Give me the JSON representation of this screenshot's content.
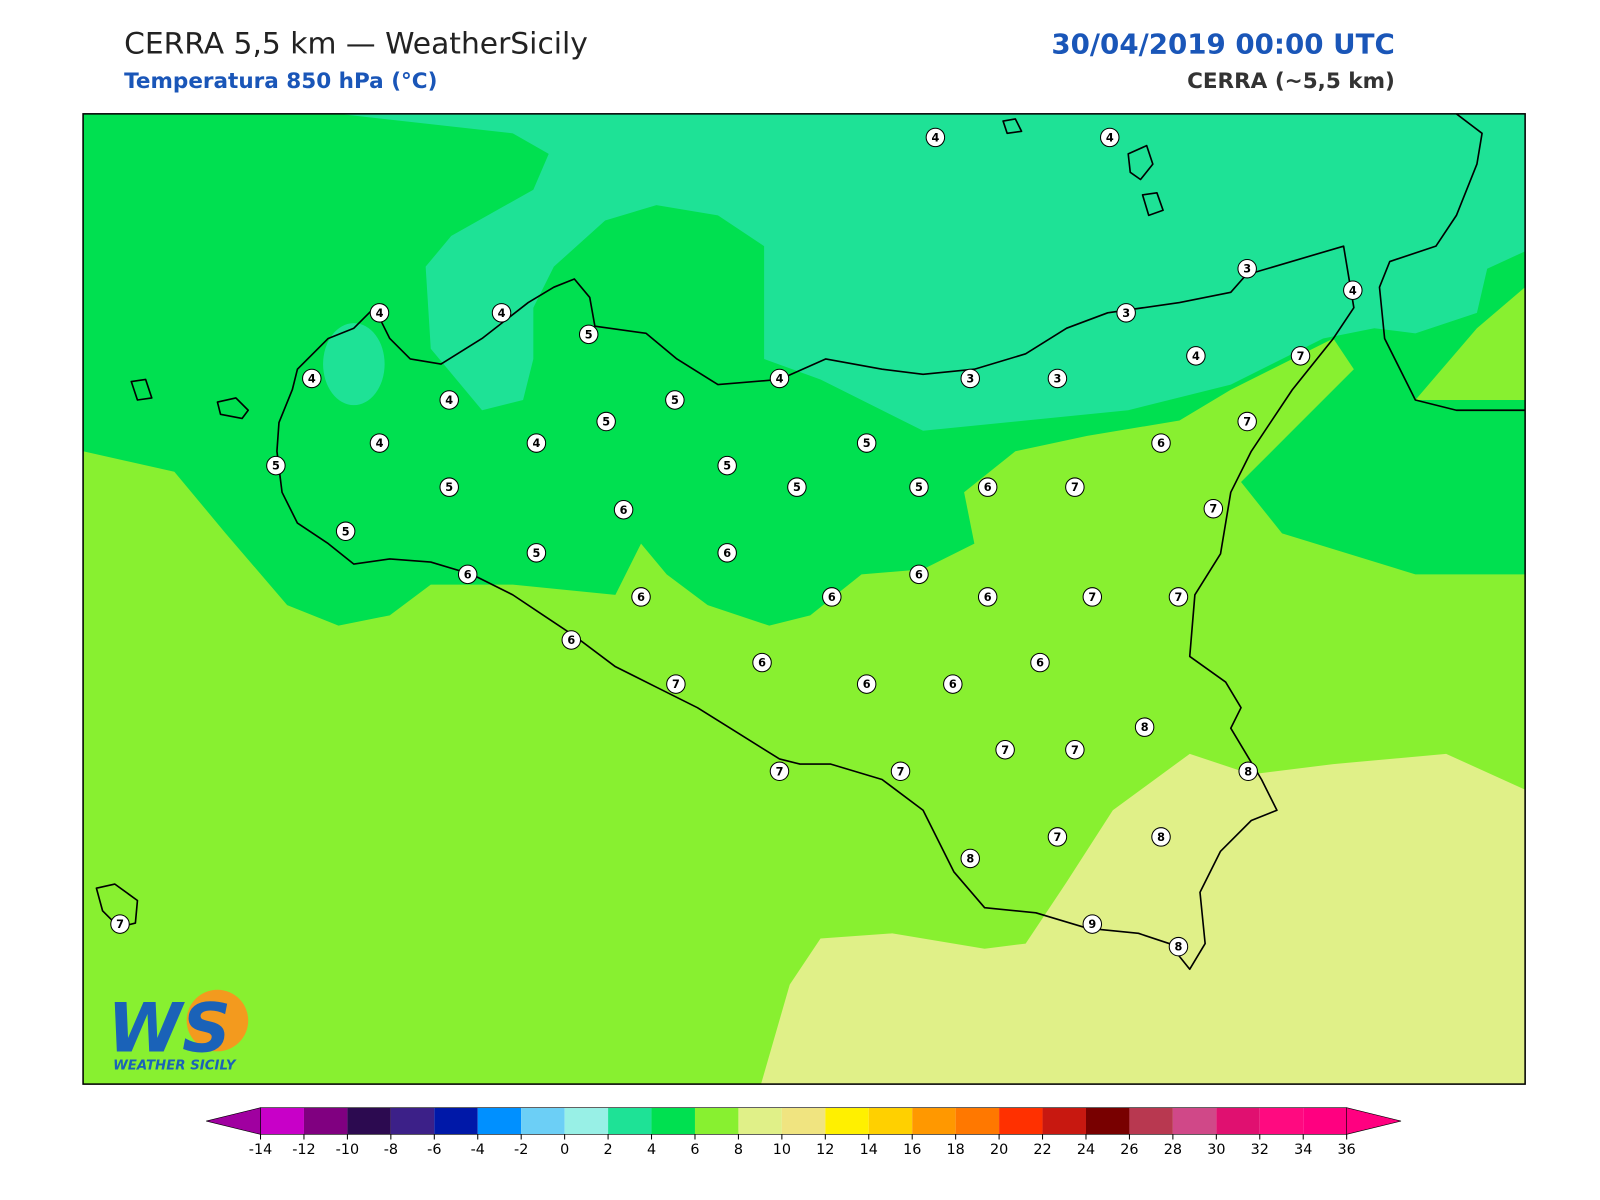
{
  "header": {
    "title": "CERRA 5,5 km — WeatherSicily",
    "subtitle": "Temperatura 850 hPa (°C)",
    "date": "30/04/2019 00:00 UTC",
    "model": "CERRA (~5,5 km)"
  },
  "map": {
    "stations": [
      4,
      4,
      3,
      4,
      4,
      4,
      5,
      3,
      4,
      4,
      5,
      4,
      3,
      3,
      4,
      7,
      5,
      7,
      4,
      4,
      5,
      6,
      5,
      5,
      5,
      5,
      5,
      6,
      7,
      7,
      6,
      5,
      5,
      6,
      6,
      6,
      6,
      6,
      6,
      7,
      7,
      6,
      6,
      6,
      7,
      6,
      6,
      8,
      7,
      7,
      7,
      7,
      8,
      7,
      8,
      8,
      9,
      8,
      7
    ],
    "colorbar": {
      "ticks": [
        -14,
        -12,
        -10,
        -8,
        -6,
        -4,
        -2,
        0,
        2,
        4,
        6,
        8,
        10,
        12,
        14,
        16,
        18,
        20,
        22,
        24,
        26,
        28,
        30,
        32,
        34,
        36
      ],
      "colors": [
        "#c800c8",
        "#800080",
        "#2c0a50",
        "#3c2088",
        "#0018a8",
        "#0090ff",
        "#6ccff6",
        "#98f0e6",
        "#1ee296",
        "#00e050",
        "#88f030",
        "#e0f088",
        "#f0e480",
        "#fff000",
        "#ffd000",
        "#ff9800",
        "#ff7800",
        "#ff3000",
        "#c81810",
        "#780000",
        "#b83850",
        "#d04888",
        "#e01070",
        "#ff0a80",
        "#ff0080"
      ],
      "under_color": "#a000a0",
      "over_color": "#ff0080"
    }
  },
  "logo": {
    "mark": "WS",
    "name": "WEATHER SICILY"
  }
}
